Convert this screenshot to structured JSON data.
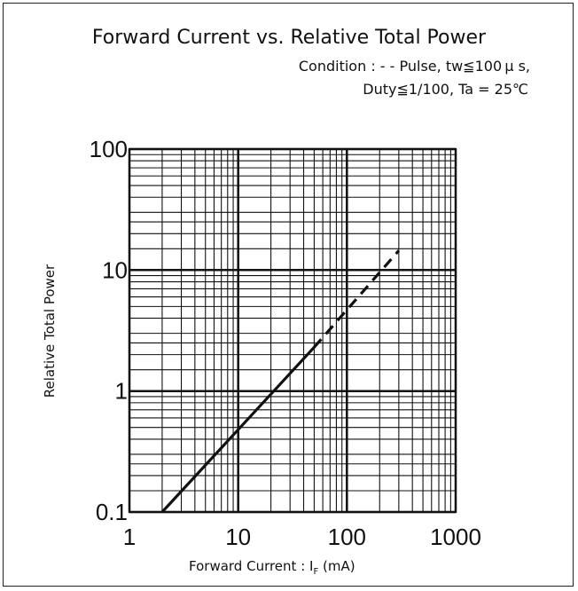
{
  "chart_data": {
    "type": "line",
    "title": "Forward Current vs. Relative Total Power",
    "condition_line1": "Condition : - - Pulse, tw≦100 μ s,",
    "condition_line2": "Duty≦1/100, Ta = 25℃",
    "xlabel_main": "Forward Current : I",
    "xlabel_sub": "F",
    "xlabel_unit": " (mA)",
    "ylabel": "Relative Total Power",
    "x_scale": "log",
    "y_scale": "log",
    "xlim": [
      1,
      1000
    ],
    "ylim": [
      0.1,
      100
    ],
    "x_ticks": [
      1,
      10,
      100,
      1000
    ],
    "x_tick_labels": [
      "1",
      "10",
      "100",
      "1000"
    ],
    "y_ticks": [
      0.1,
      1,
      10,
      100
    ],
    "y_tick_labels": [
      "0.1",
      "1",
      "10",
      "100"
    ],
    "grid": true,
    "series": [
      {
        "style": "solid",
        "x": [
          2,
          50
        ],
        "y": [
          0.1,
          2.3
        ]
      },
      {
        "style": "dashed",
        "x": [
          50,
          300
        ],
        "y": [
          2.3,
          14.5
        ]
      }
    ]
  }
}
